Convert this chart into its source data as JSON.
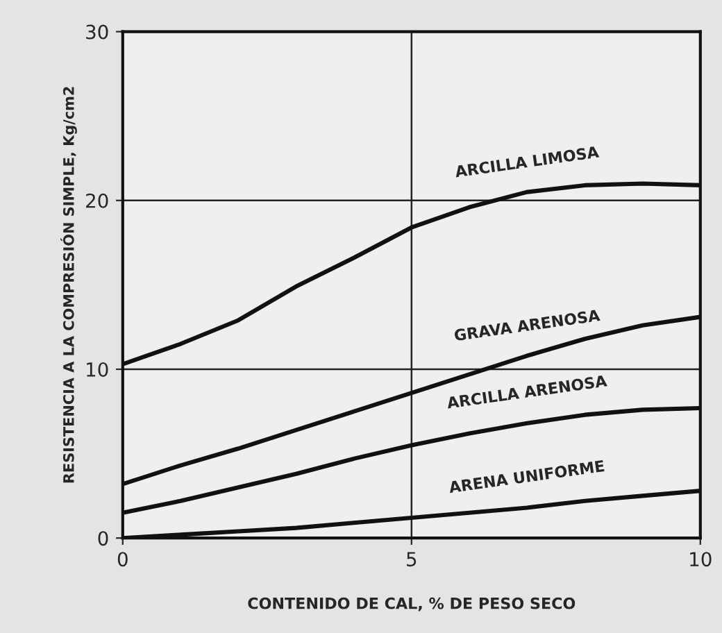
{
  "chart_data": {
    "type": "line",
    "xlabel": "CONTENIDO DE CAL, % DE PESO SECO",
    "ylabel": "RESISTENCIA A LA COMPRESIÓN SIMPLE, Kg/cm2",
    "x": [
      0,
      1,
      2,
      3,
      4,
      5,
      6,
      7,
      8,
      9,
      10
    ],
    "series": [
      {
        "name": "ARCILLA LIMOSA",
        "color": "#111111",
        "values": [
          10.3,
          11.5,
          12.9,
          14.9,
          16.6,
          18.4,
          19.6,
          20.5,
          20.9,
          21.0,
          20.9
        ]
      },
      {
        "name": "GRAVA ARENOSA",
        "color": "#111111",
        "values": [
          3.2,
          4.3,
          5.3,
          6.4,
          7.5,
          8.6,
          9.7,
          10.8,
          11.8,
          12.6,
          13.1
        ]
      },
      {
        "name": "ARCILLA ARENOSA",
        "color": "#111111",
        "values": [
          1.5,
          2.2,
          3.0,
          3.8,
          4.7,
          5.5,
          6.2,
          6.8,
          7.3,
          7.6,
          7.7
        ]
      },
      {
        "name": "ARENA UNIFORME",
        "color": "#111111",
        "values": [
          0,
          0.2,
          0.4,
          0.6,
          0.9,
          1.2,
          1.5,
          1.8,
          2.2,
          2.5,
          2.8
        ]
      }
    ],
    "xlim": [
      0,
      10
    ],
    "ylim": [
      0,
      30
    ],
    "xticks": [
      0,
      5,
      10
    ],
    "yticks": [
      0,
      10,
      20,
      30
    ],
    "grid": true,
    "legend": false,
    "line_style": "solid",
    "marker": "none"
  }
}
